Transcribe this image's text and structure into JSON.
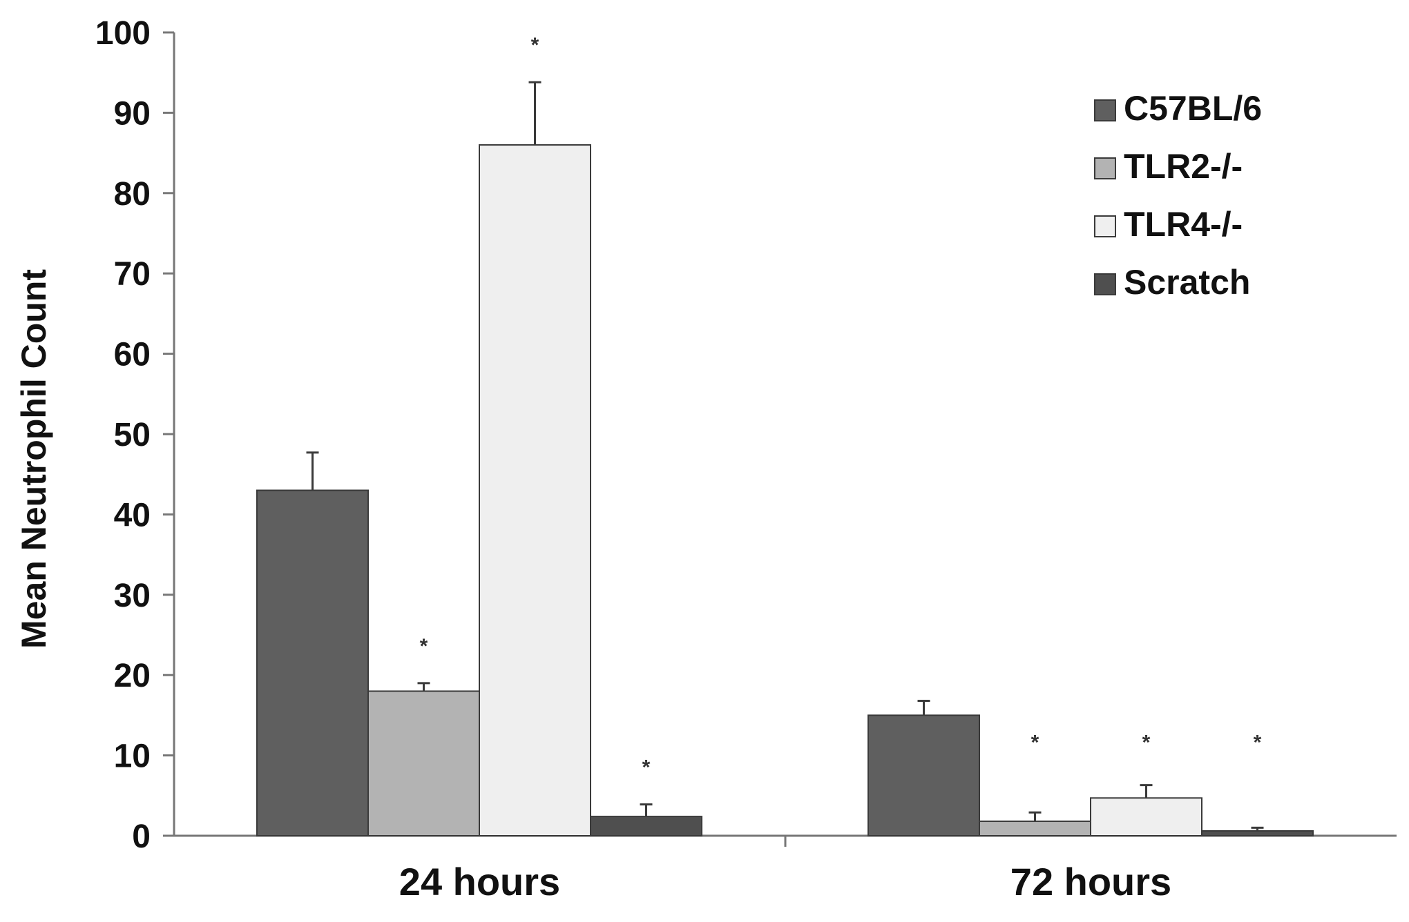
{
  "chart_data": {
    "type": "bar",
    "title": "",
    "xlabel": "",
    "ylabel": "Mean Neutrophil Count",
    "ylim": [
      0,
      100
    ],
    "yticks": [
      0,
      10,
      20,
      30,
      40,
      50,
      60,
      70,
      80,
      90,
      100
    ],
    "grid": false,
    "legend_position": "top-right",
    "categories": [
      "24 hours",
      "72 hours"
    ],
    "series": [
      {
        "name": "C57BL/6",
        "color": "#5f5f5f",
        "values": [
          43,
          15
        ],
        "errors": [
          4.7,
          1.8
        ],
        "significance": [
          "",
          ""
        ]
      },
      {
        "name": "TLR2-/-",
        "color": "#b3b3b3",
        "values": [
          18,
          1.8
        ],
        "errors": [
          1.0,
          1.1
        ],
        "significance": [
          "*",
          "*"
        ]
      },
      {
        "name": "TLR4-/-",
        "color": "#efefef",
        "values": [
          86,
          4.7
        ],
        "errors": [
          7.8,
          1.6
        ],
        "significance": [
          "*",
          "*"
        ]
      },
      {
        "name": "Scratch",
        "color": "#4f4f4f",
        "values": [
          2.4,
          0.6
        ],
        "errors": [
          1.5,
          0.4
        ],
        "significance": [
          "*",
          "*"
        ]
      }
    ]
  }
}
